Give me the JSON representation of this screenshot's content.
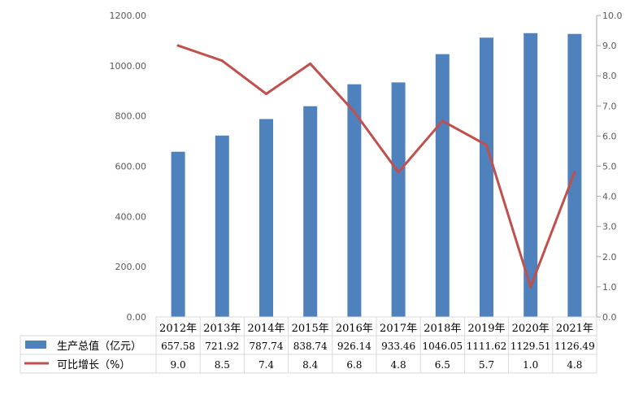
{
  "chart_data": {
    "type": "bar+line",
    "categories": [
      "2012年",
      "2013年",
      "2014年",
      "2015年",
      "2016年",
      "2017年",
      "2018年",
      "2019年",
      "2020年",
      "2021年"
    ],
    "series": [
      {
        "name": "生产总值（亿元）",
        "type": "bar",
        "axis": "left",
        "color": "#4F81BD",
        "values": [
          657.58,
          721.92,
          787.74,
          838.74,
          926.14,
          933.46,
          1046.05,
          1111.62,
          1129.51,
          1126.49
        ],
        "labels": [
          "657.58",
          "721.92",
          "787.74",
          "838.74",
          "926.14",
          "933.46",
          "1046.05",
          "1111.62",
          "1129.51",
          "1126.49"
        ]
      },
      {
        "name": "可比增长（%）",
        "type": "line",
        "axis": "right",
        "color": "#C0504D",
        "values": [
          9.0,
          8.5,
          7.4,
          8.4,
          6.8,
          4.8,
          6.5,
          5.7,
          1.0,
          4.8
        ],
        "labels": [
          "9.0",
          "8.5",
          "7.4",
          "8.4",
          "6.8",
          "4.8",
          "6.5",
          "5.7",
          "1.0",
          "4.8"
        ]
      }
    ],
    "y_left": {
      "range": [
        0,
        1200
      ],
      "ticks": [
        "0.00",
        "200.00",
        "400.00",
        "600.00",
        "800.00",
        "1000.00",
        "1200.00"
      ]
    },
    "y_right": {
      "range": [
        0,
        10
      ],
      "ticks": [
        "0.0",
        "1.0",
        "2.0",
        "3.0",
        "4.0",
        "5.0",
        "6.0",
        "7.0",
        "8.0",
        "9.0",
        "10.0"
      ]
    },
    "grid": false,
    "legend": "data-table-below"
  }
}
